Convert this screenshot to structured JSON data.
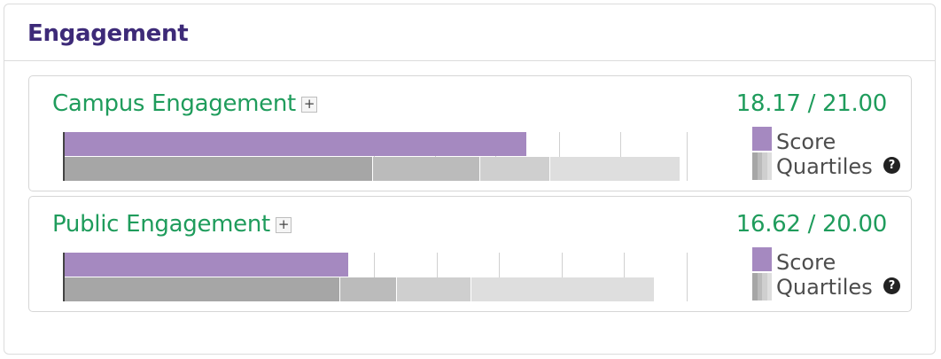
{
  "panel": {
    "title": "Engagement"
  },
  "colors": {
    "title": "#3d2a78",
    "green": "#1f9c5c",
    "score_bar": "#a589c0",
    "quartiles": [
      "#a6a6a6",
      "#bbbbbb",
      "#cfcfcf",
      "#dedede"
    ]
  },
  "legend": {
    "score_label": "Score",
    "quartiles_label": "Quartiles",
    "help_icon": "question-circle-icon",
    "help_glyph": "?"
  },
  "expand_glyph": "+",
  "sections": [
    {
      "title": "Campus Engagement",
      "score_text": "18.17 / 21.00",
      "chart_data": {
        "type": "bar",
        "score": 18.17,
        "max": 21.0,
        "quartile_bounds": [
          12.15,
          16.35,
          19.1,
          24.2
        ],
        "scale_max": 24.5,
        "grid_ticks": [
          12.2,
          14.6,
          17.0,
          19.5,
          21.9,
          24.5
        ]
      }
    },
    {
      "title": "Public Engagement",
      "score_text": "16.62 / 20.00",
      "chart_data": {
        "type": "bar",
        "score": 16.62,
        "max": 20.0,
        "quartile_bounds": [
          16.2,
          19.5,
          23.85,
          34.6
        ],
        "scale_max": 36.5,
        "grid_ticks": [
          18.2,
          21.9,
          25.5,
          29.2,
          32.8,
          36.5
        ]
      }
    }
  ]
}
